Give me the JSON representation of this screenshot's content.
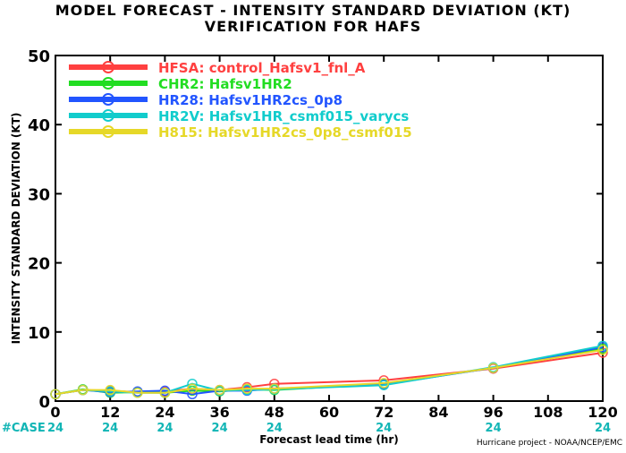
{
  "header": {
    "title_line1": "MODEL FORECAST - INTENSITY STANDARD DEVIATION (KT)",
    "title_line2": "VERIFICATION FOR HAFS"
  },
  "footer": {
    "credit": "Hurricane project - NOAA/NCEP/EMC"
  },
  "chart_data": {
    "type": "line",
    "xlabel": "Forecast lead time (hr)",
    "ylabel": "INTENSITY STANDARD DEVIATION (KT)",
    "xlim": [
      0,
      120
    ],
    "ylim": [
      0,
      50
    ],
    "xticks": [
      0,
      12,
      24,
      36,
      48,
      60,
      72,
      84,
      96,
      108,
      120
    ],
    "yticks": [
      0,
      10,
      20,
      30,
      40,
      50
    ],
    "grid": false,
    "legend_position": "top-left",
    "case_label": "#CASE",
    "case_x": [
      0,
      12,
      24,
      36,
      48,
      72,
      96,
      120
    ],
    "case_counts": [
      "24",
      "24",
      "24",
      "24",
      "24",
      "24",
      "24",
      "24"
    ],
    "x": [
      0,
      6,
      12,
      18,
      24,
      30,
      36,
      42,
      48,
      72,
      96,
      120
    ],
    "series": [
      {
        "name": "HFSA: control_Hafsv1_fnl_A",
        "color": "#ff4040",
        "values": [
          1.0,
          1.6,
          1.5,
          1.3,
          1.4,
          1.8,
          1.6,
          2.0,
          2.5,
          3.0,
          4.7,
          7.0
        ]
      },
      {
        "name": "CHR2: Hafsv1HR2",
        "color": "#22dd22",
        "values": [
          1.0,
          1.7,
          1.2,
          1.3,
          1.2,
          1.5,
          1.4,
          1.7,
          1.6,
          2.5,
          4.8,
          7.6
        ]
      },
      {
        "name": "HR28: Hafsv1HR2cs_0p8",
        "color": "#2255ff",
        "values": [
          1.0,
          1.6,
          1.3,
          1.4,
          1.5,
          1.0,
          1.5,
          1.5,
          1.8,
          2.4,
          4.8,
          7.8
        ]
      },
      {
        "name": "HR2V: Hafsv1HR_csmf015_varycs",
        "color": "#11cccc",
        "values": [
          1.0,
          1.6,
          1.4,
          1.2,
          1.2,
          2.5,
          1.5,
          1.6,
          1.7,
          2.3,
          4.9,
          8.0
        ]
      },
      {
        "name": "H815: Hafsv1HR2cs_0p8_csmf015",
        "color": "#e6d828",
        "values": [
          1.0,
          1.6,
          1.6,
          1.2,
          1.2,
          1.8,
          1.6,
          1.8,
          1.8,
          2.6,
          4.8,
          7.4
        ]
      }
    ]
  }
}
